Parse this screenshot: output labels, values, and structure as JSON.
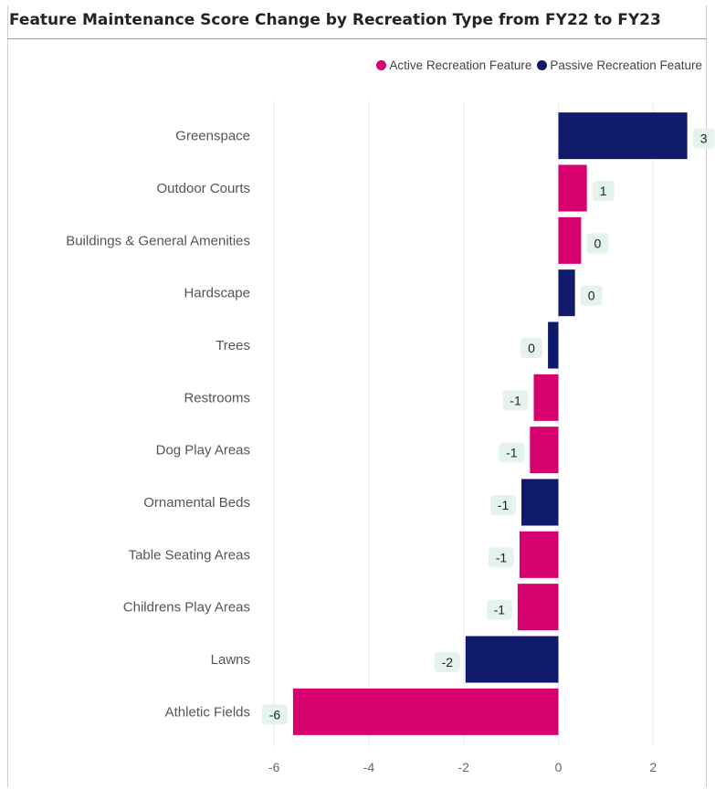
{
  "chart_data": {
    "type": "bar",
    "orientation": "horizontal",
    "title": "Feature Maintenance Score Change by Recreation Type from FY22 to FY23",
    "legend_position": "top-right",
    "series": [
      {
        "name": "Active Recreation Feature",
        "color": "#D6006F"
      },
      {
        "name": "Passive Recreation Feature",
        "color": "#0F1A6B"
      }
    ],
    "categories": [
      "Greenspace",
      "Outdoor Courts",
      "Buildings & General Amenities",
      "Hardscape",
      "Trees",
      "Restrooms",
      "Dog Play Areas",
      "Ornamental Beds",
      "Table Seating Areas",
      "Childrens Play Areas",
      "Lawns",
      "Athletic Fields"
    ],
    "values": [
      2.72,
      0.6,
      0.48,
      0.35,
      -0.22,
      -0.52,
      -0.6,
      -0.78,
      -0.82,
      -0.86,
      -1.96,
      -5.6
    ],
    "value_labels": [
      "3",
      "1",
      "0",
      "0",
      "0",
      "-1",
      "-1",
      "-1",
      "-1",
      "-1",
      "-2",
      "-6"
    ],
    "series_index": [
      1,
      0,
      0,
      1,
      1,
      0,
      0,
      1,
      0,
      0,
      1,
      0
    ],
    "xlim": [
      -6.35,
      2.65
    ],
    "xticks": [
      -6,
      -4,
      -2,
      0,
      2
    ],
    "xtick_labels": [
      "-6",
      "-4",
      "-2",
      "0",
      "2"
    ],
    "xlabel": "",
    "ylabel": "",
    "grid": true
  }
}
